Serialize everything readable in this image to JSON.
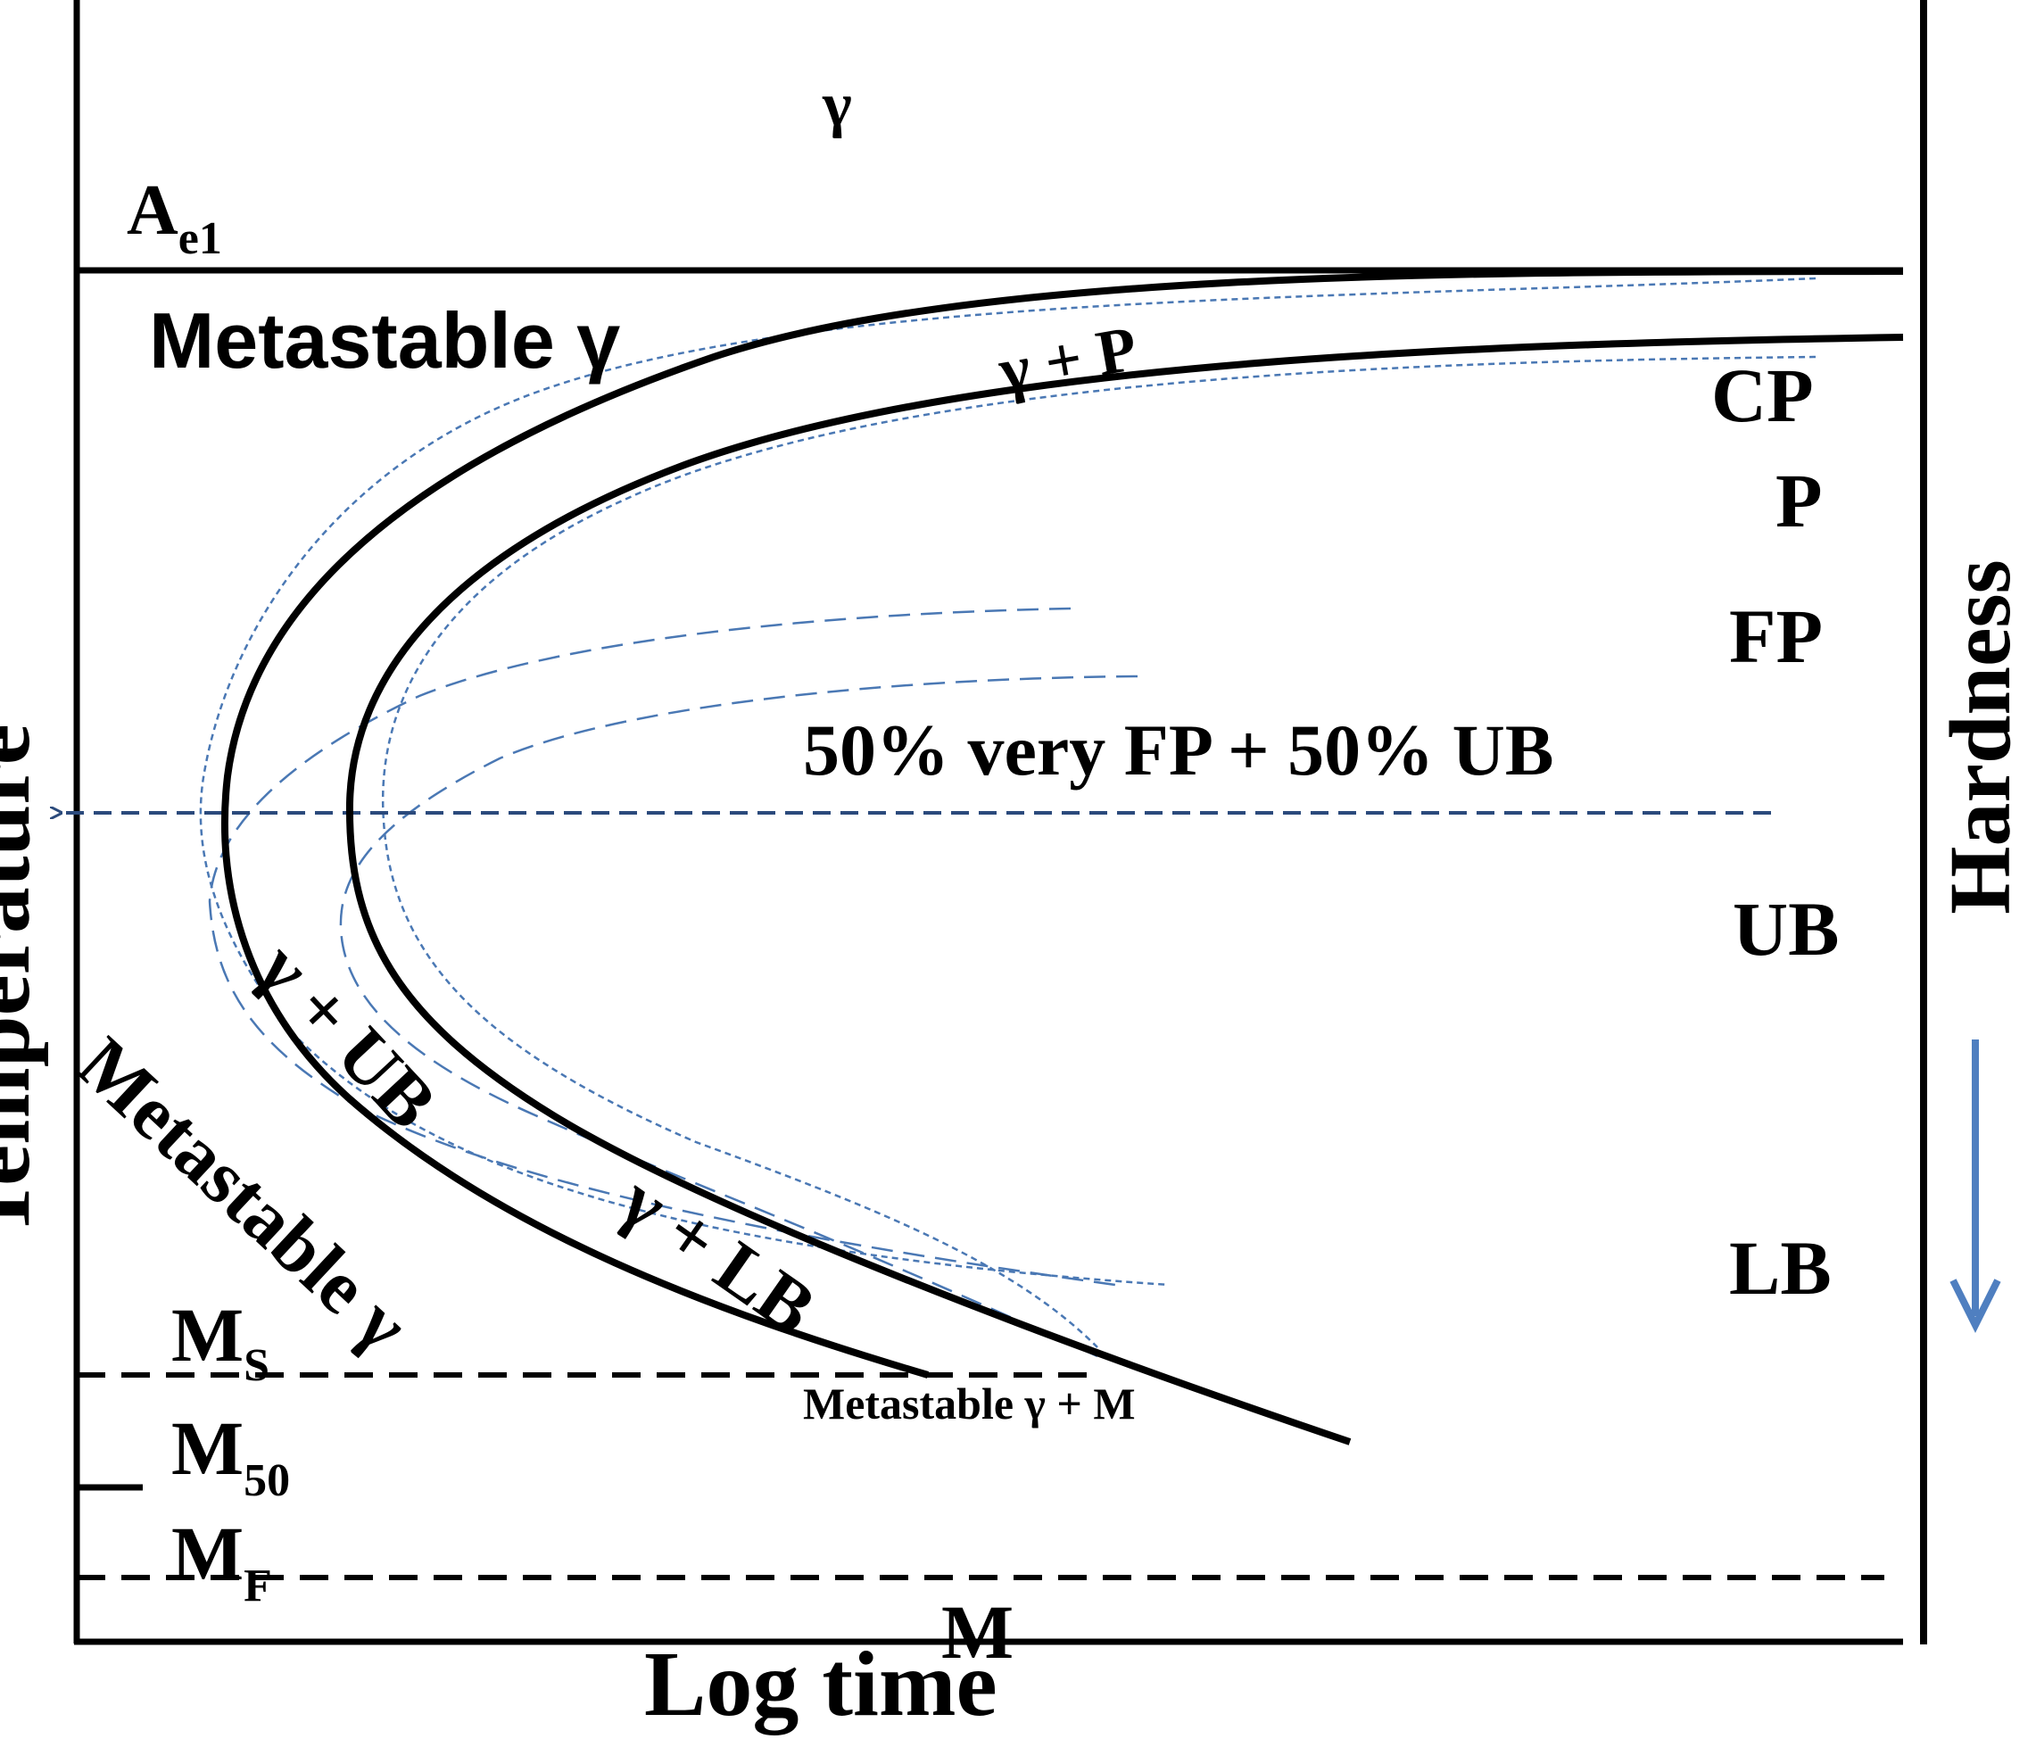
{
  "labels": {
    "gamma_top": "γ",
    "ae1_main": "A",
    "ae1_sub": "e1",
    "metastable_gamma_top": "Metastable γ",
    "gamma_p": "γ + P",
    "cp": "CP",
    "p": "P",
    "fp": "FP",
    "fifty_fifty": "50% very FP + 50% UB",
    "ub": "UB",
    "lb": "LB",
    "gamma_ub": "γ + UB",
    "gamma_lb": "γ + LB",
    "metastable_gamma_diag": "Metastable γ",
    "metastable_gamma_m": "Metastable γ  + M",
    "ms_main": "M",
    "ms_sub": "S",
    "m50_main": "M",
    "m50_sub": "50",
    "mf_main": "M",
    "mf_sub": "F",
    "m_bottom": "M",
    "x_axis": "Log time",
    "y_axis": "Temperature",
    "hardness": "Hardness"
  },
  "colors": {
    "curve": "#000000",
    "dashed_blue": "#4a78b4",
    "dashed_navy": "#2b4a7c",
    "arrow_blue": "#4f7fc0"
  }
}
